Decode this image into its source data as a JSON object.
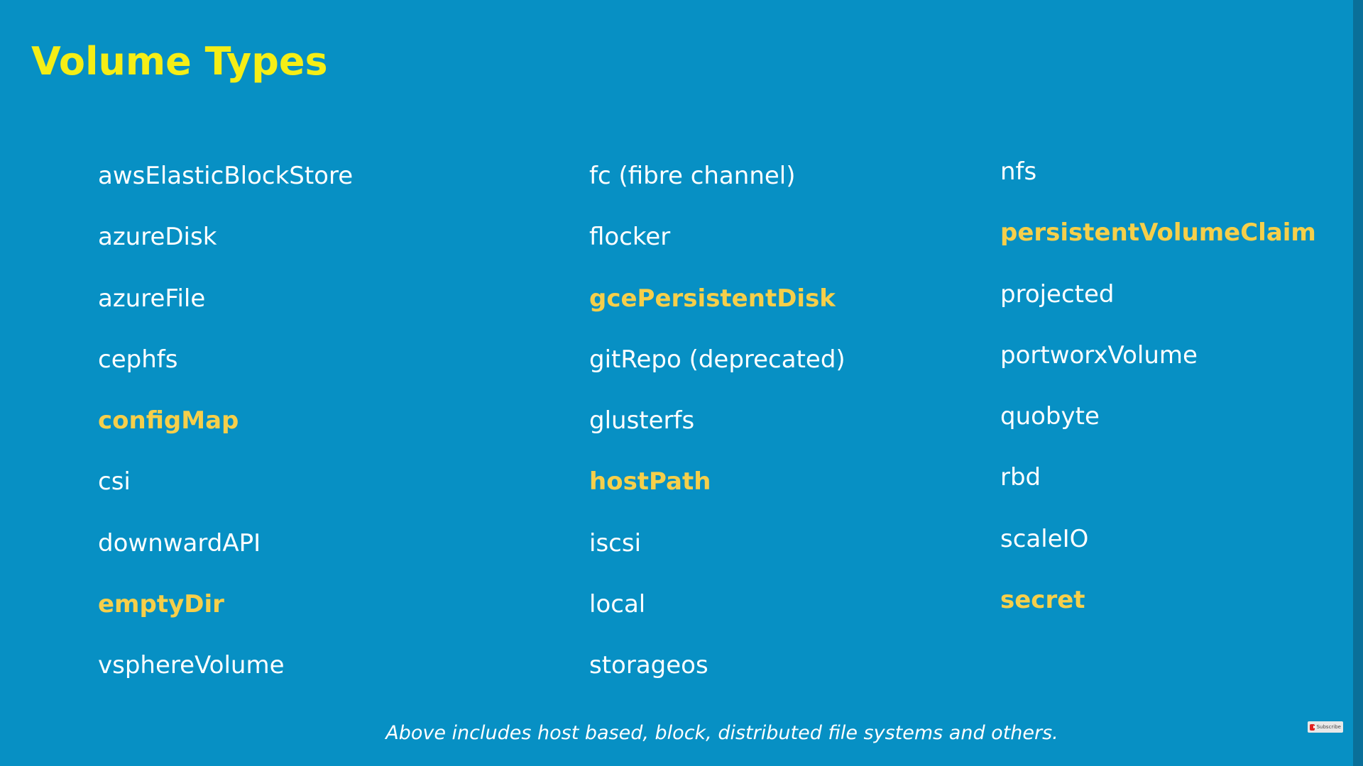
{
  "slide": {
    "title": "Volume Types",
    "footnote": "Above includes host based, block, distributed file systems and others.",
    "subscribe_label": "Subscribe"
  },
  "colors": {
    "background": "#0790c4",
    "title": "#f5ee16",
    "item": "#ffffff",
    "highlight": "#f6cf4a"
  },
  "columns": [
    [
      {
        "label": "awsElasticBlockStore",
        "highlight": false
      },
      {
        "label": "azureDisk",
        "highlight": false
      },
      {
        "label": "azureFile",
        "highlight": false
      },
      {
        "label": "cephfs",
        "highlight": false
      },
      {
        "label": "configMap",
        "highlight": true
      },
      {
        "label": "csi",
        "highlight": false
      },
      {
        "label": "downwardAPI",
        "highlight": false
      },
      {
        "label": "emptyDir",
        "highlight": true
      },
      {
        "label": "vsphereVolume",
        "highlight": false
      }
    ],
    [
      {
        "label": "fc (fibre channel)",
        "highlight": false
      },
      {
        "label": "flocker",
        "highlight": false
      },
      {
        "label": "gcePersistentDisk",
        "highlight": true
      },
      {
        "label": "gitRepo (deprecated)",
        "highlight": false
      },
      {
        "label": "glusterfs",
        "highlight": false
      },
      {
        "label": "hostPath",
        "highlight": true
      },
      {
        "label": "iscsi",
        "highlight": false
      },
      {
        "label": "local",
        "highlight": false
      },
      {
        "label": "storageos",
        "highlight": false
      }
    ],
    [
      {
        "label": "nfs",
        "highlight": false
      },
      {
        "label": "persistentVolumeClaim",
        "highlight": true
      },
      {
        "label": "projected",
        "highlight": false
      },
      {
        "label": "portworxVolume",
        "highlight": false
      },
      {
        "label": "quobyte",
        "highlight": false
      },
      {
        "label": "rbd",
        "highlight": false
      },
      {
        "label": "scaleIO",
        "highlight": false
      },
      {
        "label": "secret",
        "highlight": true
      }
    ]
  ]
}
